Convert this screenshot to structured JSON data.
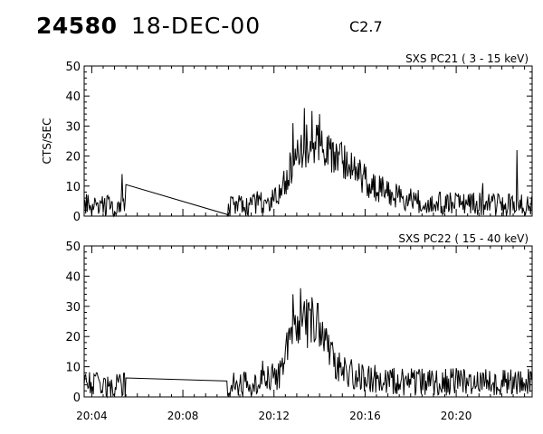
{
  "header": {
    "event_id": "24580",
    "date": "18-DEC-00",
    "flare_class": "C2.7"
  },
  "chart_data": [
    {
      "type": "line",
      "title": "SXS PC21  ( 3 - 15 keV)",
      "ylabel": "CTS/SEC",
      "xlabel": "",
      "xlim": [
        "20:03:40",
        "20:23:20"
      ],
      "ylim": [
        0,
        50
      ],
      "yticks": [
        0,
        10,
        20,
        30,
        40,
        50
      ],
      "xticks": [
        "20:04",
        "20:08",
        "20:12",
        "20:16",
        "20:20"
      ],
      "show_xtick_labels": false,
      "grid": false,
      "gap": {
        "start": "20:05:30",
        "end": "20:09:55",
        "y_start": 10.5,
        "y_end": 0
      },
      "series": [
        {
          "x": [
            "20:03:40",
            "20:04:00",
            "20:04:20",
            "20:04:40",
            "20:05:00",
            "20:05:20",
            "20:05:30",
            "20:09:55",
            "20:10:20",
            "20:10:40",
            "20:11:00",
            "20:11:20",
            "20:11:40",
            "20:12:00",
            "20:12:20",
            "20:12:40",
            "20:13:00",
            "20:13:20",
            "20:13:40",
            "20:14:00",
            "20:14:20",
            "20:14:40",
            "20:15:00",
            "20:15:20",
            "20:15:40",
            "20:16:00",
            "20:16:20",
            "20:16:40",
            "20:17:00",
            "20:17:20",
            "20:17:40",
            "20:18:00",
            "20:18:20",
            "20:18:40",
            "20:19:00",
            "20:19:20",
            "20:19:40",
            "20:20:00",
            "20:20:20",
            "20:20:40",
            "20:21:00",
            "20:21:20",
            "20:21:40",
            "20:22:00",
            "20:22:20",
            "20:22:40",
            "20:23:00",
            "20:23:20"
          ],
          "values": [
            3.5,
            3.5,
            3.5,
            3.5,
            3.5,
            3.5,
            3.5,
            3.5,
            3.5,
            3.8,
            4,
            4.5,
            5,
            6,
            9,
            15,
            20,
            23,
            24,
            23,
            22,
            20,
            18,
            16,
            14,
            12,
            10,
            9,
            8,
            7,
            6,
            5.5,
            5,
            4.8,
            4.5,
            4.2,
            4,
            4,
            4,
            4,
            3.9,
            3.8,
            3.7,
            3.6,
            3.6,
            3.5,
            3.5,
            3.5
          ],
          "noise": 3.2,
          "spikes": [
            [
              "20:05:20",
              14
            ],
            [
              "20:12:50",
              31
            ],
            [
              "20:13:20",
              36
            ],
            [
              "20:13:40",
              35
            ],
            [
              "20:14:00",
              34
            ],
            [
              "20:22:40",
              22
            ],
            [
              "20:21:10",
              11
            ]
          ]
        }
      ]
    },
    {
      "type": "line",
      "title": "SXS PC22  ( 15 - 40 keV)",
      "ylabel": "",
      "xlabel": "",
      "xlim": [
        "20:03:40",
        "20:23:20"
      ],
      "ylim": [
        0,
        50
      ],
      "yticks": [
        0,
        10,
        20,
        30,
        40,
        50
      ],
      "xticks": [
        "20:04",
        "20:08",
        "20:12",
        "20:16",
        "20:20"
      ],
      "show_xtick_labels": true,
      "grid": false,
      "gap": {
        "start": "20:05:30",
        "end": "20:09:55",
        "y_start": 6.3,
        "y_end": 7.8
      },
      "series": [
        {
          "x": [
            "20:03:40",
            "20:04:00",
            "20:04:20",
            "20:04:40",
            "20:05:00",
            "20:05:20",
            "20:05:30",
            "20:09:55",
            "20:10:20",
            "20:10:40",
            "20:11:00",
            "20:11:20",
            "20:11:40",
            "20:12:00",
            "20:12:20",
            "20:12:40",
            "20:13:00",
            "20:13:20",
            "20:13:40",
            "20:14:00",
            "20:14:20",
            "20:14:40",
            "20:15:00",
            "20:15:20",
            "20:15:40",
            "20:16:00",
            "20:16:20",
            "20:16:40",
            "20:17:00",
            "20:17:20",
            "20:17:40",
            "20:18:00",
            "20:18:20",
            "20:18:40",
            "20:19:00",
            "20:19:20",
            "20:19:40",
            "20:20:00",
            "20:20:20",
            "20:20:40",
            "20:21:00",
            "20:21:20",
            "20:21:40",
            "20:22:00",
            "20:22:20",
            "20:22:40",
            "20:23:00",
            "20:23:20"
          ],
          "values": [
            4,
            4,
            4,
            4,
            4,
            4,
            4,
            4,
            4,
            4.2,
            4.5,
            5,
            5.5,
            6.5,
            8,
            18,
            24,
            25,
            24,
            21,
            16,
            12,
            9,
            8,
            7,
            6.5,
            6,
            5.8,
            5.5,
            5.3,
            5,
            5,
            5,
            5,
            5,
            5,
            5,
            5,
            5,
            5,
            5,
            5,
            5,
            5,
            5,
            5,
            5,
            5
          ],
          "noise": 3.6,
          "spikes": [
            [
              "20:12:50",
              34
            ],
            [
              "20:13:10",
              36
            ],
            [
              "20:13:40",
              33
            ],
            [
              "20:13:55",
              31
            ],
            [
              "20:11:30",
              12
            ]
          ]
        }
      ]
    }
  ]
}
